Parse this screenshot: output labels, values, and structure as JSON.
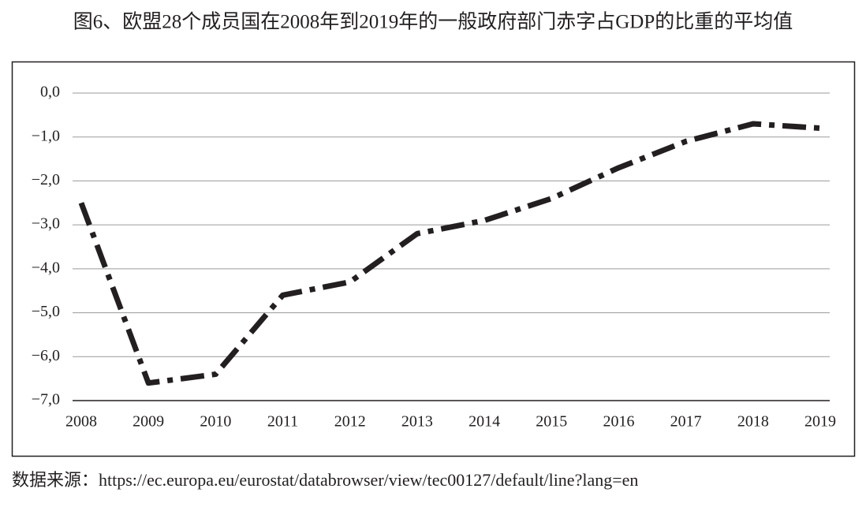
{
  "chart_data": {
    "type": "line",
    "title": "图6、欧盟28个成员国在2008年到2019年的一般政府部门赤字占GDP的比重的平均值",
    "source": "数据来源：https://ec.europa.eu/eurostat/databrowser/view/tec00127/default/line?lang=en",
    "categories": [
      "2008",
      "2009",
      "2010",
      "2011",
      "2012",
      "2013",
      "2014",
      "2015",
      "2016",
      "2017",
      "2018",
      "2019"
    ],
    "series": [
      {
        "color": "#231f20",
        "values": [
          -2.5,
          -6.6,
          -6.4,
          -4.6,
          -4.3,
          -3.2,
          -2.9,
          -2.4,
          -1.7,
          -1.1,
          -0.7,
          -0.8
        ]
      }
    ],
    "ylim": [
      -7,
      0
    ],
    "yticks": [
      {
        "value": 0,
        "label": "0,0"
      },
      {
        "value": -1,
        "label": "−1,0"
      },
      {
        "value": -2,
        "label": "−2,0"
      },
      {
        "value": -3,
        "label": "−3,0"
      },
      {
        "value": -4,
        "label": "−4,0"
      },
      {
        "value": -5,
        "label": "−5,0"
      },
      {
        "value": -6,
        "label": "−6,0"
      },
      {
        "value": -7,
        "label": "−7,0"
      }
    ],
    "grid": true
  }
}
